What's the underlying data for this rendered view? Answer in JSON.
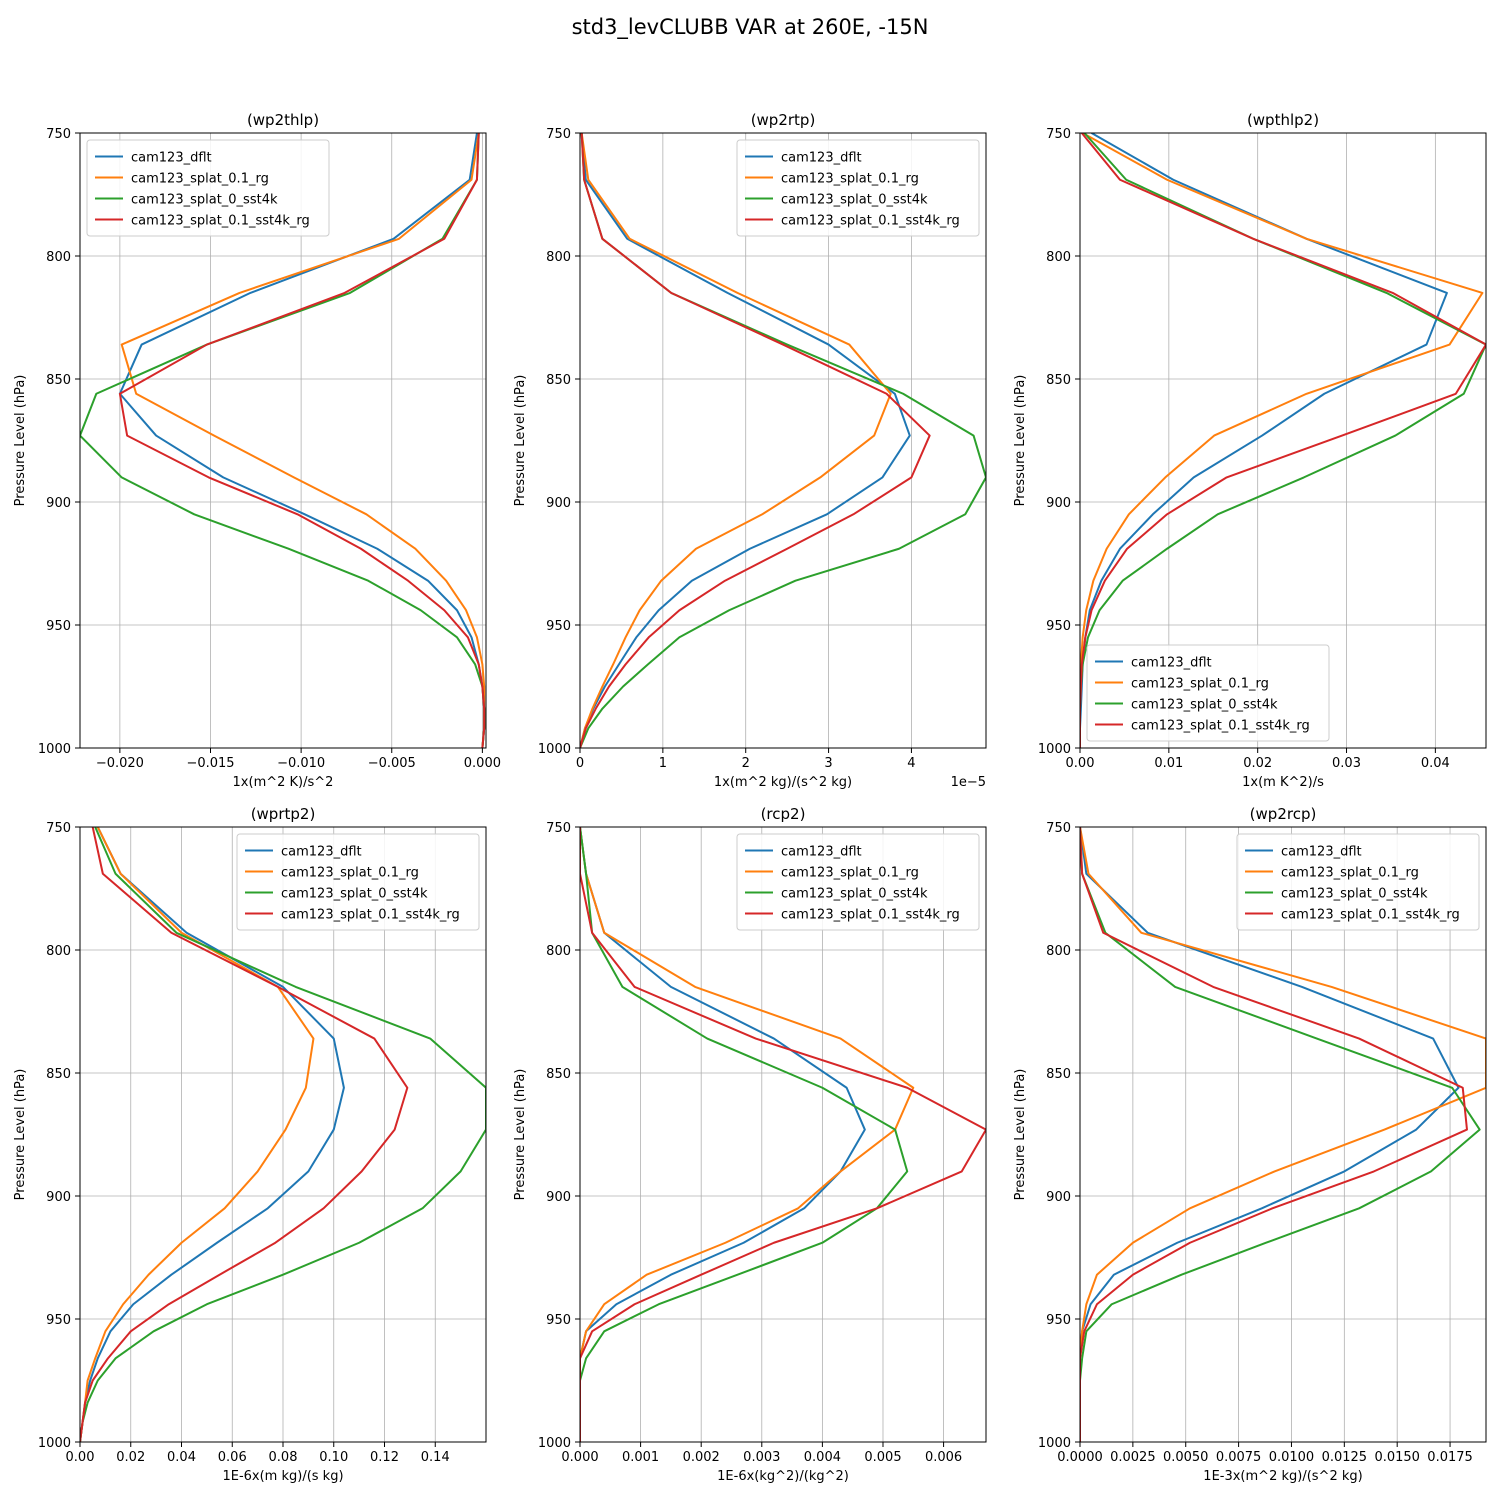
{
  "figure_title": "std3_levCLUBB VAR at 260E, -15N",
  "colors": {
    "cam123_dflt": "#1f77b4",
    "cam123_splat_0.1_rg": "#ff7f0e",
    "cam123_splat_0_sst4k": "#2ca02c",
    "cam123_splat_0.1_sst4k_rg": "#d62728"
  },
  "chart_data": [
    {
      "type": "line",
      "title": "(wp2thlp)",
      "xlabel": "1x(m^2 K)/s^2",
      "ylabel": "Pressure Level (hPa)",
      "offset_text": "",
      "xlim": [
        -0.0222,
        0.0002
      ],
      "ylim": [
        1000,
        750
      ],
      "xticks": [
        -0.02,
        -0.015,
        -0.01,
        -0.005,
        0.0
      ],
      "xtick_labels": [
        "−0.020",
        "−0.015",
        "−0.010",
        "−0.005",
        "0.000"
      ],
      "yticks": [
        750,
        800,
        850,
        900,
        950,
        1000
      ],
      "grid": true,
      "legend": "upper-left",
      "y": [
        750,
        769,
        793,
        815,
        836,
        856,
        873,
        890,
        905,
        919,
        932,
        944,
        955,
        966,
        975,
        984,
        992,
        1000
      ],
      "series": [
        {
          "name": "cam123_dflt",
          "x": [
            -0.0003,
            -0.0007,
            -0.0049,
            -0.0128,
            -0.0188,
            -0.02,
            -0.018,
            -0.0143,
            -0.0098,
            -0.0058,
            -0.003,
            -0.0014,
            -0.0006,
            -0.0002,
            0.0,
            0.0001,
            0.0001,
            0.0
          ]
        },
        {
          "name": "cam123_splat_0.1_rg",
          "x": [
            -0.0002,
            -0.0006,
            -0.0046,
            -0.0134,
            -0.0199,
            -0.0191,
            -0.0148,
            -0.0104,
            -0.0064,
            -0.0037,
            -0.002,
            -0.0009,
            -0.0003,
            0.0,
            0.0001,
            0.0001,
            0.0001,
            0.0
          ]
        },
        {
          "name": "cam123_splat_0_sst4k",
          "x": [
            -0.0002,
            -0.0003,
            -0.0022,
            -0.0073,
            -0.0152,
            -0.0213,
            -0.0222,
            -0.0199,
            -0.0159,
            -0.0107,
            -0.0063,
            -0.0034,
            -0.0014,
            -0.0004,
            0.0,
            0.0001,
            0.0001,
            0.0
          ]
        },
        {
          "name": "cam123_splat_0.1_sst4k_rg",
          "x": [
            -0.0002,
            -0.0003,
            -0.0021,
            -0.0076,
            -0.0152,
            -0.02,
            -0.0196,
            -0.0151,
            -0.0102,
            -0.0067,
            -0.0041,
            -0.0021,
            -0.0008,
            -0.0002,
            0.0,
            0.0001,
            0.0001,
            0.0
          ]
        }
      ]
    },
    {
      "type": "line",
      "title": "(wp2rtp)",
      "xlabel": "1x(m^2 kg)/(s^2 kg)",
      "ylabel": "Pressure Level (hPa)",
      "offset_text": "1e−5",
      "xlim": [
        0,
        4.9
      ],
      "ylim": [
        1000,
        750
      ],
      "xticks": [
        0,
        1,
        2,
        3,
        4
      ],
      "xtick_labels": [
        "0",
        "1",
        "2",
        "3",
        "4"
      ],
      "yticks": [
        750,
        800,
        850,
        900,
        950,
        1000
      ],
      "grid": true,
      "legend": "upper-right",
      "y": [
        750,
        769,
        793,
        815,
        836,
        856,
        873,
        890,
        905,
        919,
        932,
        944,
        955,
        966,
        975,
        984,
        992,
        1000
      ],
      "series": [
        {
          "name": "cam123_dflt",
          "x": [
            0.02,
            0.07,
            0.57,
            1.78,
            3.0,
            3.8,
            3.98,
            3.65,
            2.98,
            2.05,
            1.35,
            0.95,
            0.68,
            0.47,
            0.3,
            0.16,
            0.06,
            0.0
          ]
        },
        {
          "name": "cam123_splat_0.1_rg",
          "x": [
            0.02,
            0.1,
            0.6,
            1.9,
            3.25,
            3.75,
            3.55,
            2.9,
            2.2,
            1.4,
            0.98,
            0.72,
            0.55,
            0.4,
            0.27,
            0.15,
            0.06,
            0.0
          ]
        },
        {
          "name": "cam123_splat_0_sst4k",
          "x": [
            0.02,
            0.05,
            0.27,
            1.1,
            2.5,
            3.9,
            4.75,
            4.9,
            4.65,
            3.85,
            2.6,
            1.8,
            1.2,
            0.82,
            0.52,
            0.27,
            0.1,
            0.0
          ]
        },
        {
          "name": "cam123_splat_0.1_sst4k_rg",
          "x": [
            0.02,
            0.05,
            0.27,
            1.1,
            2.45,
            3.7,
            4.22,
            4.0,
            3.3,
            2.5,
            1.75,
            1.2,
            0.83,
            0.55,
            0.35,
            0.19,
            0.07,
            0.0
          ]
        }
      ]
    },
    {
      "type": "line",
      "title": "(wpthlp2)",
      "xlabel": "1x(m K^2)/s",
      "ylabel": "Pressure Level (hPa)",
      "offset_text": "",
      "xlim": [
        0,
        0.0457
      ],
      "ylim": [
        1000,
        750
      ],
      "xticks": [
        0.0,
        0.01,
        0.02,
        0.03,
        0.04
      ],
      "xtick_labels": [
        "0.00",
        "0.01",
        "0.02",
        "0.03",
        "0.04"
      ],
      "yticks": [
        750,
        800,
        850,
        900,
        950,
        1000
      ],
      "grid": true,
      "legend": "lower-left",
      "y": [
        750,
        769,
        793,
        815,
        836,
        856,
        873,
        890,
        905,
        919,
        932,
        944,
        955,
        966,
        975,
        984,
        992,
        1000
      ],
      "series": [
        {
          "name": "cam123_dflt",
          "x": [
            0.0013,
            0.0105,
            0.0255,
            0.0413,
            0.039,
            0.0275,
            0.0205,
            0.0128,
            0.0082,
            0.0045,
            0.0024,
            0.0011,
            0.0006,
            0.0003,
            0.0002,
            0.0001,
            0.0,
            0.0
          ]
        },
        {
          "name": "cam123_splat_0.1_rg",
          "x": [
            0.0003,
            0.0098,
            0.0255,
            0.0453,
            0.0416,
            0.0255,
            0.0151,
            0.0096,
            0.0055,
            0.003,
            0.0015,
            0.0007,
            0.0003,
            0.0001,
            0.0,
            0.0,
            0.0,
            0.0
          ]
        },
        {
          "name": "cam123_splat_0_sst4k",
          "x": [
            0.0005,
            0.0052,
            0.0195,
            0.0345,
            0.0457,
            0.0432,
            0.0355,
            0.0252,
            0.0155,
            0.0098,
            0.0048,
            0.0022,
            0.0009,
            0.0003,
            0.0001,
            0.0,
            0.0,
            0.0
          ]
        },
        {
          "name": "cam123_splat_0.1_sst4k_rg",
          "x": [
            0.0002,
            0.0045,
            0.0195,
            0.0352,
            0.0457,
            0.0423,
            0.0295,
            0.0165,
            0.0098,
            0.0053,
            0.0028,
            0.0013,
            0.0006,
            0.0002,
            0.0001,
            0.0,
            0.0,
            0.0
          ]
        }
      ]
    },
    {
      "type": "line",
      "title": "(wprtp2)",
      "xlabel": "1E-6x(m kg)/(s kg)",
      "ylabel": "Pressure Level (hPa)",
      "offset_text": "",
      "xlim": [
        0,
        0.16
      ],
      "ylim": [
        1000,
        750
      ],
      "xticks": [
        0.0,
        0.02,
        0.04,
        0.06,
        0.08,
        0.1,
        0.12,
        0.14
      ],
      "xtick_labels": [
        "0.00",
        "0.02",
        "0.04",
        "0.06",
        "0.08",
        "0.10",
        "0.12",
        "0.14"
      ],
      "yticks": [
        750,
        800,
        850,
        900,
        950,
        1000
      ],
      "grid": true,
      "legend": "upper-right",
      "y": [
        750,
        769,
        793,
        815,
        836,
        856,
        873,
        890,
        905,
        919,
        932,
        944,
        955,
        966,
        975,
        984,
        992,
        1000
      ],
      "series": [
        {
          "name": "cam123_dflt",
          "x": [
            0.007,
            0.016,
            0.042,
            0.08,
            0.1,
            0.104,
            0.1,
            0.09,
            0.074,
            0.054,
            0.036,
            0.021,
            0.012,
            0.007,
            0.004,
            0.002,
            0.001,
            0.0
          ]
        },
        {
          "name": "cam123_splat_0.1_rg",
          "x": [
            0.007,
            0.016,
            0.04,
            0.078,
            0.092,
            0.089,
            0.081,
            0.07,
            0.057,
            0.04,
            0.027,
            0.017,
            0.01,
            0.006,
            0.003,
            0.002,
            0.001,
            0.0
          ]
        },
        {
          "name": "cam123_splat_0_sst4k",
          "x": [
            0.006,
            0.014,
            0.038,
            0.085,
            0.138,
            0.16,
            0.16,
            0.15,
            0.135,
            0.11,
            0.08,
            0.05,
            0.029,
            0.014,
            0.007,
            0.003,
            0.001,
            0.0
          ]
        },
        {
          "name": "cam123_splat_0.1_sst4k_rg",
          "x": [
            0.005,
            0.009,
            0.036,
            0.078,
            0.116,
            0.129,
            0.124,
            0.111,
            0.096,
            0.077,
            0.055,
            0.035,
            0.02,
            0.011,
            0.005,
            0.002,
            0.001,
            0.0
          ]
        }
      ]
    },
    {
      "type": "line",
      "title": "(rcp2)",
      "xlabel": "1E-6x(kg^2)/(kg^2)",
      "ylabel": "Pressure Level (hPa)",
      "offset_text": "",
      "xlim": [
        0,
        0.0067
      ],
      "ylim": [
        1000,
        750
      ],
      "xticks": [
        0.0,
        0.001,
        0.002,
        0.003,
        0.004,
        0.005,
        0.006
      ],
      "xtick_labels": [
        "0.000",
        "0.001",
        "0.002",
        "0.003",
        "0.004",
        "0.005",
        "0.006"
      ],
      "yticks": [
        750,
        800,
        850,
        900,
        950,
        1000
      ],
      "grid": true,
      "legend": "upper-right",
      "y": [
        750,
        769,
        793,
        815,
        836,
        856,
        873,
        890,
        905,
        919,
        932,
        944,
        955,
        966,
        975,
        984,
        992,
        1000
      ],
      "series": [
        {
          "name": "cam123_dflt",
          "x": [
            0.0,
            0.0001,
            0.0004,
            0.0015,
            0.0032,
            0.0044,
            0.0047,
            0.0043,
            0.0037,
            0.0027,
            0.0015,
            0.0006,
            0.0001,
            0.0,
            0.0,
            0.0,
            0.0,
            0.0
          ]
        },
        {
          "name": "cam123_splat_0.1_rg",
          "x": [
            0.0,
            0.0001,
            0.0004,
            0.0019,
            0.0043,
            0.0055,
            0.0052,
            0.0043,
            0.0036,
            0.0024,
            0.0011,
            0.0004,
            0.0001,
            0.0,
            0.0,
            0.0,
            0.0,
            0.0
          ]
        },
        {
          "name": "cam123_splat_0_sst4k",
          "x": [
            0.0,
            0.0001,
            0.0002,
            0.0007,
            0.0021,
            0.004,
            0.0052,
            0.0054,
            0.0049,
            0.004,
            0.0026,
            0.0013,
            0.0004,
            0.0001,
            0.0,
            0.0,
            0.0,
            0.0
          ]
        },
        {
          "name": "cam123_splat_0.1_sst4k_rg",
          "x": [
            0.0,
            0.0,
            0.0002,
            0.0009,
            0.0029,
            0.0054,
            0.0067,
            0.0063,
            0.0049,
            0.0032,
            0.002,
            0.0009,
            0.0002,
            0.0,
            0.0,
            0.0,
            0.0,
            0.0
          ]
        }
      ]
    },
    {
      "type": "line",
      "title": "(wp2rcp)",
      "xlabel": "1E-3x(m^2 kg)/(s^2 kg)",
      "ylabel": "Pressure Level (hPa)",
      "offset_text": "",
      "xlim": [
        0,
        0.0192
      ],
      "ylim": [
        1000,
        750
      ],
      "xticks": [
        0.0,
        0.0025,
        0.005,
        0.0075,
        0.01,
        0.0125,
        0.015,
        0.0175
      ],
      "xtick_labels": [
        "0.0000",
        "0.0025",
        "0.0050",
        "0.0075",
        "0.0100",
        "0.0125",
        "0.0150",
        "0.0175"
      ],
      "yticks": [
        750,
        800,
        850,
        900,
        950,
        1000
      ],
      "grid": true,
      "legend": "upper-right",
      "y": [
        750,
        769,
        793,
        815,
        836,
        856,
        873,
        890,
        905,
        919,
        932,
        944,
        955,
        966,
        975,
        984,
        992,
        1000
      ],
      "series": [
        {
          "name": "cam123_dflt",
          "x": [
            0.0,
            0.0003,
            0.0032,
            0.0105,
            0.0167,
            0.0179,
            0.0159,
            0.0125,
            0.0086,
            0.0046,
            0.0016,
            0.0005,
            0.0001,
            0.0,
            0.0,
            0.0,
            0.0,
            0.0
          ]
        },
        {
          "name": "cam123_splat_0.1_rg",
          "x": [
            0.0,
            0.0004,
            0.0029,
            0.0119,
            0.0192,
            0.0192,
            0.0144,
            0.0092,
            0.0052,
            0.0025,
            0.0008,
            0.0003,
            0.0001,
            0.0,
            0.0,
            0.0,
            0.0,
            0.0
          ]
        },
        {
          "name": "cam123_splat_0_sst4k",
          "x": [
            0.0,
            0.0001,
            0.0012,
            0.0045,
            0.0112,
            0.0176,
            0.0189,
            0.0166,
            0.0132,
            0.0088,
            0.0048,
            0.0015,
            0.0003,
            0.0001,
            0.0,
            0.0,
            0.0,
            0.0
          ]
        },
        {
          "name": "cam123_splat_0.1_sst4k_rg",
          "x": [
            0.0,
            0.0001,
            0.0011,
            0.0063,
            0.0132,
            0.0181,
            0.0183,
            0.0139,
            0.0091,
            0.0052,
            0.0025,
            0.0008,
            0.0002,
            0.0,
            0.0,
            0.0,
            0.0,
            0.0
          ]
        }
      ]
    }
  ]
}
